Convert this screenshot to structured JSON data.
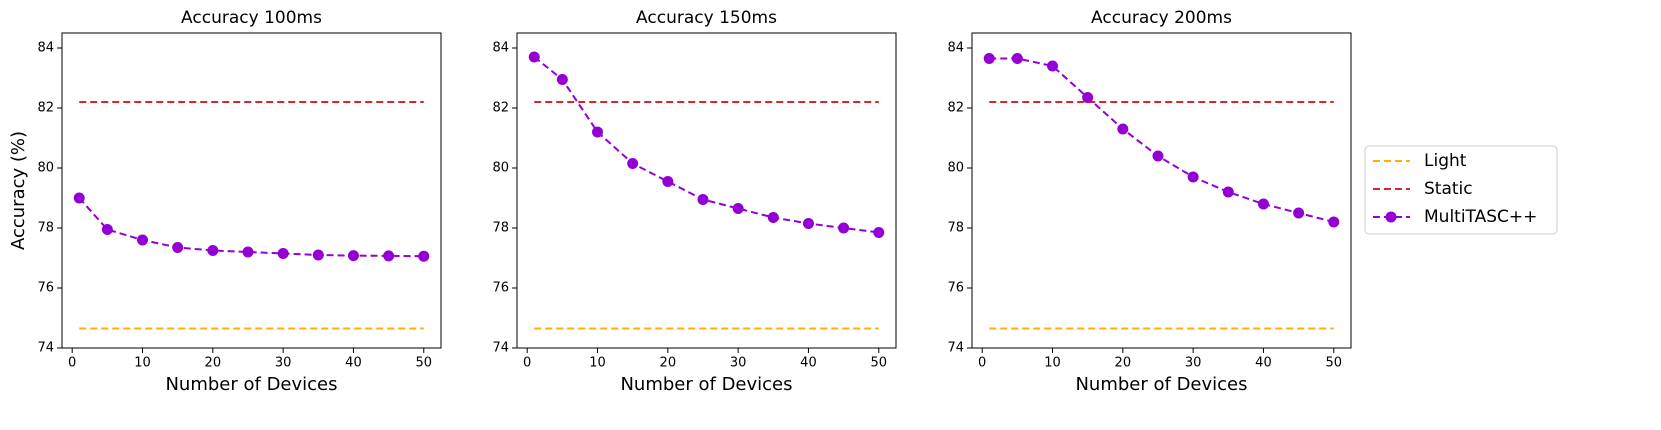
{
  "chart_data": [
    {
      "type": "line",
      "title": "Accuracy 100ms",
      "xlabel": "Number of Devices",
      "ylabel": "Accuracy (%)",
      "x": [
        1,
        5,
        10,
        15,
        20,
        25,
        30,
        35,
        40,
        45,
        50
      ],
      "series": [
        {
          "name": "Light",
          "color": "#ffb000",
          "values": [
            74.65,
            74.65,
            74.65,
            74.65,
            74.65,
            74.65,
            74.65,
            74.65,
            74.65,
            74.65,
            74.65
          ]
        },
        {
          "name": "Static",
          "color": "#d62728",
          "values": [
            82.2,
            82.2,
            82.2,
            82.2,
            82.2,
            82.2,
            82.2,
            82.2,
            82.2,
            82.2,
            82.2
          ]
        },
        {
          "name": "MultiTASC++",
          "color": "#9400d3",
          "marker": "o",
          "values": [
            79.0,
            77.95,
            77.6,
            77.35,
            77.25,
            77.2,
            77.15,
            77.1,
            77.08,
            77.07,
            77.06
          ]
        }
      ],
      "xlim": [
        -1.45,
        52.45
      ],
      "xticks": [
        0,
        10,
        20,
        30,
        40,
        50
      ],
      "ylim": [
        74,
        84.5
      ],
      "yticks": [
        74,
        76,
        78,
        80,
        82,
        84
      ],
      "legend": "outside right"
    },
    {
      "type": "line",
      "title": "Accuracy 150ms",
      "xlabel": "Number of Devices",
      "x": [
        1,
        5,
        10,
        15,
        20,
        25,
        30,
        35,
        40,
        45,
        50
      ],
      "series": [
        {
          "name": "Light",
          "color": "#ffb000",
          "values": [
            74.65,
            74.65,
            74.65,
            74.65,
            74.65,
            74.65,
            74.65,
            74.65,
            74.65,
            74.65,
            74.65
          ]
        },
        {
          "name": "Static",
          "color": "#d62728",
          "values": [
            82.2,
            82.2,
            82.2,
            82.2,
            82.2,
            82.2,
            82.2,
            82.2,
            82.2,
            82.2,
            82.2
          ]
        },
        {
          "name": "MultiTASC++",
          "color": "#9400d3",
          "marker": "o",
          "values": [
            83.7,
            82.95,
            81.2,
            80.15,
            79.55,
            78.95,
            78.65,
            78.35,
            78.15,
            78.0,
            77.85
          ]
        }
      ],
      "xlim": [
        -1.45,
        52.45
      ],
      "xticks": [
        0,
        10,
        20,
        30,
        40,
        50
      ],
      "ylim": [
        74,
        84.5
      ],
      "yticks": [
        74,
        76,
        78,
        80,
        82,
        84
      ]
    },
    {
      "type": "line",
      "title": "Accuracy 200ms",
      "xlabel": "Number of Devices",
      "x": [
        1,
        5,
        10,
        15,
        20,
        25,
        30,
        35,
        40,
        45,
        50
      ],
      "series": [
        {
          "name": "Light",
          "color": "#ffb000",
          "values": [
            74.65,
            74.65,
            74.65,
            74.65,
            74.65,
            74.65,
            74.65,
            74.65,
            74.65,
            74.65,
            74.65
          ]
        },
        {
          "name": "Static",
          "color": "#d62728",
          "values": [
            82.2,
            82.2,
            82.2,
            82.2,
            82.2,
            82.2,
            82.2,
            82.2,
            82.2,
            82.2,
            82.2
          ]
        },
        {
          "name": "MultiTASC++",
          "color": "#9400d3",
          "marker": "o",
          "values": [
            83.65,
            83.65,
            83.4,
            82.35,
            81.3,
            80.4,
            79.7,
            79.2,
            78.8,
            78.5,
            78.2
          ]
        }
      ],
      "xlim": [
        -1.45,
        52.45
      ],
      "xticks": [
        0,
        10,
        20,
        30,
        40,
        50
      ],
      "ylim": [
        74,
        84.5
      ],
      "yticks": [
        74,
        76,
        78,
        80,
        82,
        84
      ]
    }
  ]
}
